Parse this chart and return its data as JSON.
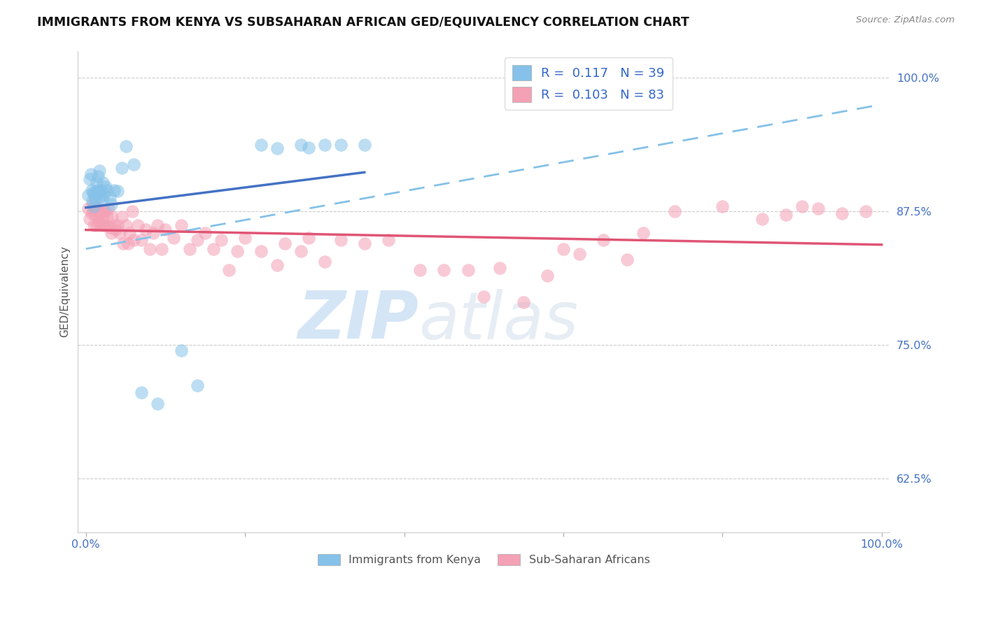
{
  "title": "IMMIGRANTS FROM KENYA VS SUBSAHARAN AFRICAN GED/EQUIVALENCY CORRELATION CHART",
  "source": "Source: ZipAtlas.com",
  "ylabel": "GED/Equivalency",
  "y_ticks": [
    0.625,
    0.75,
    0.875,
    1.0
  ],
  "y_tick_labels": [
    "62.5%",
    "75.0%",
    "87.5%",
    "100.0%"
  ],
  "x_ticks": [
    0.0,
    0.2,
    0.4,
    0.6,
    0.8,
    1.0
  ],
  "x_tick_labels": [
    "0.0%",
    "",
    "",
    "",
    "",
    "100.0%"
  ],
  "xlim": [
    -0.01,
    1.01
  ],
  "ylim": [
    0.575,
    1.025
  ],
  "legend_r1": "R =  0.117   N = 39",
  "legend_r2": "R =  0.103   N = 83",
  "kenya_color": "#85C1E8",
  "subsaharan_color": "#F4A0B5",
  "kenya_line_color": "#4472C4",
  "subsaharan_line_color": "#E05575",
  "dashed_line_color": "#85C1E8",
  "watermark_zip": "ZIP",
  "watermark_atlas": "atlas",
  "kenya_x": [
    0.003,
    0.005,
    0.006,
    0.007,
    0.008,
    0.009,
    0.01,
    0.011,
    0.012,
    0.013,
    0.014,
    0.015,
    0.016,
    0.017,
    0.018,
    0.019,
    0.02,
    0.021,
    0.022,
    0.025,
    0.027,
    0.03,
    0.032,
    0.035,
    0.04,
    0.045,
    0.05,
    0.06,
    0.07,
    0.09,
    0.12,
    0.14,
    0.22,
    0.24,
    0.27,
    0.28,
    0.3,
    0.32,
    0.35
  ],
  "kenya_y": [
    0.89,
    0.905,
    0.91,
    0.895,
    0.885,
    0.893,
    0.88,
    0.892,
    0.887,
    0.902,
    0.895,
    0.908,
    0.893,
    0.913,
    0.888,
    0.895,
    0.887,
    0.902,
    0.891,
    0.898,
    0.895,
    0.888,
    0.882,
    0.895,
    0.894,
    0.916,
    0.936,
    0.919,
    0.706,
    0.695,
    0.745,
    0.712,
    0.937,
    0.934,
    0.937,
    0.935,
    0.937,
    0.937,
    0.937
  ],
  "subsaharan_x": [
    0.003,
    0.005,
    0.007,
    0.008,
    0.009,
    0.01,
    0.011,
    0.012,
    0.013,
    0.014,
    0.015,
    0.016,
    0.017,
    0.018,
    0.019,
    0.02,
    0.021,
    0.022,
    0.024,
    0.025,
    0.027,
    0.028,
    0.03,
    0.032,
    0.033,
    0.035,
    0.037,
    0.04,
    0.042,
    0.045,
    0.047,
    0.05,
    0.053,
    0.055,
    0.058,
    0.06,
    0.065,
    0.07,
    0.075,
    0.08,
    0.085,
    0.09,
    0.095,
    0.1,
    0.11,
    0.12,
    0.13,
    0.14,
    0.15,
    0.16,
    0.17,
    0.18,
    0.19,
    0.2,
    0.22,
    0.24,
    0.25,
    0.27,
    0.28,
    0.3,
    0.32,
    0.35,
    0.38,
    0.42,
    0.45,
    0.48,
    0.5,
    0.52,
    0.55,
    0.58,
    0.6,
    0.62,
    0.65,
    0.68,
    0.7,
    0.74,
    0.8,
    0.85,
    0.88,
    0.9,
    0.92,
    0.95,
    0.98
  ],
  "subsaharan_y": [
    0.878,
    0.868,
    0.873,
    0.882,
    0.875,
    0.862,
    0.878,
    0.872,
    0.862,
    0.875,
    0.878,
    0.865,
    0.872,
    0.875,
    0.862,
    0.87,
    0.875,
    0.862,
    0.875,
    0.862,
    0.87,
    0.878,
    0.86,
    0.855,
    0.87,
    0.862,
    0.858,
    0.862,
    0.855,
    0.87,
    0.845,
    0.862,
    0.845,
    0.855,
    0.875,
    0.848,
    0.862,
    0.848,
    0.858,
    0.84,
    0.855,
    0.862,
    0.84,
    0.858,
    0.85,
    0.862,
    0.84,
    0.848,
    0.855,
    0.84,
    0.848,
    0.82,
    0.838,
    0.85,
    0.838,
    0.825,
    0.845,
    0.838,
    0.85,
    0.828,
    0.848,
    0.845,
    0.848,
    0.82,
    0.82,
    0.82,
    0.795,
    0.822,
    0.79,
    0.815,
    0.84,
    0.835,
    0.848,
    0.83,
    0.855,
    0.875,
    0.88,
    0.868,
    0.872,
    0.88,
    0.878,
    0.873,
    0.875
  ],
  "kenya_line_x0": 0.0,
  "kenya_line_y0": 0.891,
  "kenya_line_x1": 0.35,
  "kenya_line_y1": 0.918,
  "sub_line_x0": 0.0,
  "sub_line_y0": 0.84,
  "sub_line_x1": 1.0,
  "sub_line_y1": 0.876,
  "dash_line_x0": 0.0,
  "dash_line_y0": 0.84,
  "dash_line_x1": 1.0,
  "dash_line_y1": 0.975
}
